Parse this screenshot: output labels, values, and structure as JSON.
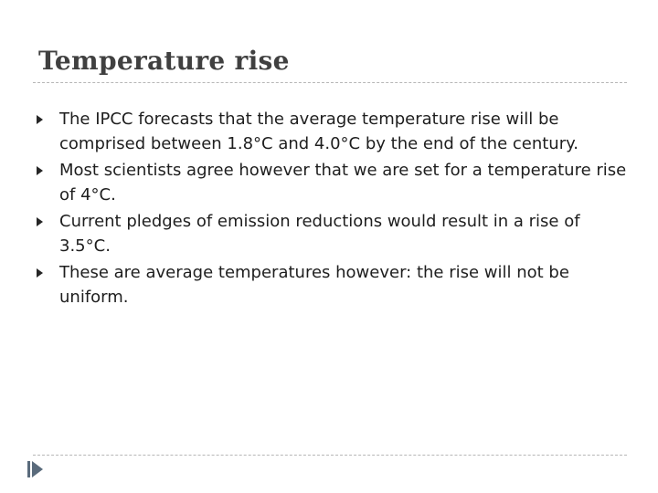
{
  "slide": {
    "title": "Temperature rise",
    "bullets": [
      {
        "text": "The IPCC forecasts that the average temperature rise will be comprised between 1.8°C and 4.0°C by the end of the century."
      },
      {
        "text": "Most scientists agree however that we are set for a temperature rise of 4°C."
      },
      {
        "text": "Current pledges of emission reductions would result in a rise of 3.5°C."
      },
      {
        "text": "These are average temperatures however: the rise will not be uniform."
      }
    ]
  },
  "icons": {
    "bullet": "triangle-bullet-icon",
    "corner": "nav-arrow-icon"
  },
  "colors": {
    "title": "#404040",
    "text": "#1e1e1e",
    "rule": "#b7b7b7",
    "nav_icon": "#5a6b7c"
  }
}
